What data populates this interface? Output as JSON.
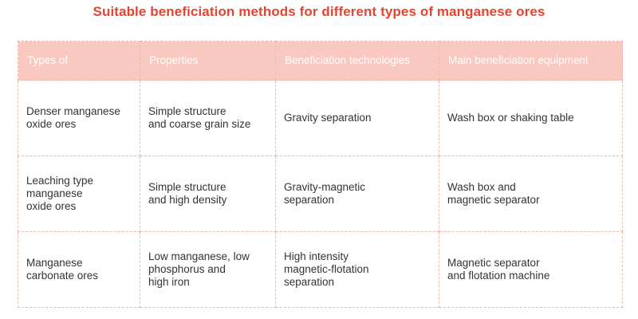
{
  "title": "Suitable beneficiation methods for different types of manganese ores",
  "table": {
    "headers": [
      "Types of",
      "Properties",
      "Beneficiation technologies",
      "Main beneficiation equipment"
    ],
    "rows": [
      [
        "Denser manganese\noxide ores",
        "Simple structure\nand coarse grain size",
        "Gravity separation",
        "Wash box or shaking table"
      ],
      [
        "Leaching type\nmanganese\noxide ores",
        "Simple structure\nand high density",
        "Gravity-magnetic\nseparation",
        "Wash box and\nmagnetic separator"
      ],
      [
        "Manganese\ncarbonate ores",
        "Low manganese, low\nphosphorus and\nhigh iron",
        "High intensity\nmagnetic-flotation\nseparation",
        "Magnetic separator\nand flotation machine"
      ]
    ]
  },
  "colors": {
    "title": "#e8432f",
    "header_bg": "#f9c8c0",
    "border": "#f1b5ac",
    "text": "#333333"
  }
}
